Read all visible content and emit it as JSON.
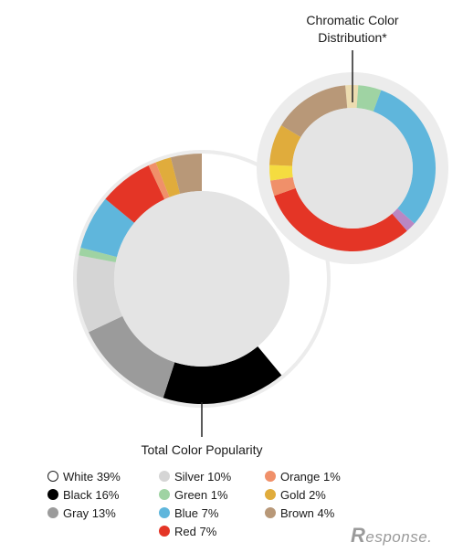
{
  "chart_data": [
    {
      "type": "pie",
      "title": "Total Color Popularity",
      "series": [
        {
          "label": "White",
          "value": 39,
          "color": "#ffffff"
        },
        {
          "label": "Black",
          "value": 16,
          "color": "#000000"
        },
        {
          "label": "Gray",
          "value": 13,
          "color": "#9b9b9b"
        },
        {
          "label": "Silver",
          "value": 10,
          "color": "#d5d5d5"
        },
        {
          "label": "Green",
          "value": 1,
          "color": "#9fd3a3"
        },
        {
          "label": "Blue",
          "value": 7,
          "color": "#5fb6dc"
        },
        {
          "label": "Red",
          "value": 7,
          "color": "#e43526"
        },
        {
          "label": "Orange",
          "value": 1,
          "color": "#f0906a"
        },
        {
          "label": "Gold",
          "value": 2,
          "color": "#e0ac3c"
        },
        {
          "label": "Brown",
          "value": 4,
          "color": "#b89878"
        }
      ]
    },
    {
      "type": "pie",
      "title": "Chromatic Color Distribution*",
      "series": [
        {
          "label": "Beige",
          "value": 2.5,
          "color": "#ecdcb0"
        },
        {
          "label": "Green",
          "value": 4.5,
          "color": "#9fd3a3"
        },
        {
          "label": "Blue",
          "value": 31,
          "color": "#5fb6dc"
        },
        {
          "label": "Purple",
          "value": 2,
          "color": "#b987c3"
        },
        {
          "label": "Red",
          "value": 31,
          "color": "#e43526"
        },
        {
          "label": "Orange",
          "value": 3,
          "color": "#f0906a"
        },
        {
          "label": "Yellow",
          "value": 3,
          "color": "#f5dc40"
        },
        {
          "label": "Gold",
          "value": 8,
          "color": "#e0ac3c"
        },
        {
          "label": "Brown",
          "value": 15,
          "color": "#b89878"
        }
      ]
    }
  ],
  "titles": {
    "main": "Total Color Popularity",
    "chromatic_line1": "Chromatic Color",
    "chromatic_line2": "Distribution*"
  },
  "legend": [
    {
      "text": "White 39%",
      "color": "#ffffff"
    },
    {
      "text": "Silver 10%",
      "color": "#d5d5d5"
    },
    {
      "text": "Orange 1%",
      "color": "#f0906a"
    },
    {
      "text": "Black 16%",
      "color": "#000000"
    },
    {
      "text": "Green 1%",
      "color": "#9fd3a3"
    },
    {
      "text": "Gold 2%",
      "color": "#e0ac3c"
    },
    {
      "text": "Gray 13%",
      "color": "#9b9b9b"
    },
    {
      "text": "Blue 7%",
      "color": "#5fb6dc"
    },
    {
      "text": "Brown 4%",
      "color": "#b89878"
    },
    {
      "text": "",
      "color": ""
    },
    {
      "text": "Red 7%",
      "color": "#e43526"
    },
    {
      "text": "",
      "color": ""
    }
  ],
  "watermark": {
    "r": "R",
    "rest": "esponse."
  }
}
